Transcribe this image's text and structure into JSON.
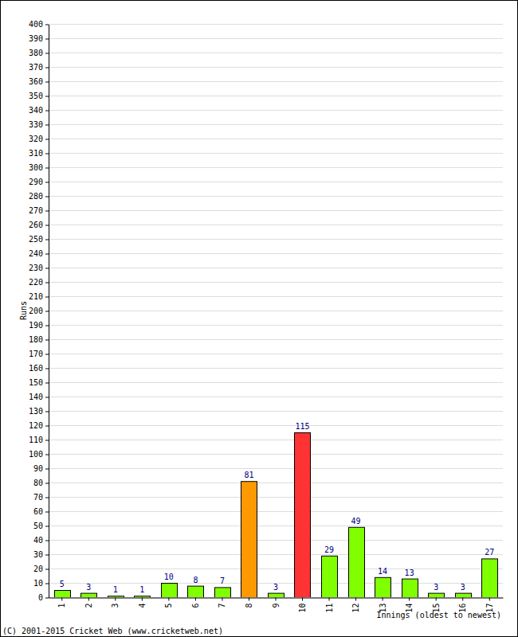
{
  "chart_data": {
    "type": "bar",
    "x_label": "Innings (oldest to newest)",
    "y_label": "Runs",
    "annotations": [
      "(C) 2001-2015 Cricket Web (www.cricketweb.net)"
    ],
    "categories": [
      "1",
      "2",
      "3",
      "4",
      "5",
      "6",
      "7",
      "8",
      "9",
      "10",
      "11",
      "12",
      "13",
      "14",
      "15",
      "16",
      "17"
    ],
    "values": [
      5,
      3,
      1,
      1,
      10,
      8,
      7,
      81,
      3,
      115,
      29,
      49,
      14,
      13,
      3,
      3,
      27
    ],
    "colors": [
      "#80ff00",
      "#80ff00",
      "#80ff00",
      "#80ff00",
      "#80ff00",
      "#80ff00",
      "#80ff00",
      "#ff9900",
      "#80ff00",
      "#ff3333",
      "#80ff00",
      "#80ff00",
      "#80ff00",
      "#80ff00",
      "#80ff00",
      "#80ff00",
      "#80ff00"
    ],
    "ylim": [
      0,
      400
    ],
    "yticks": [
      0,
      10,
      20,
      30,
      40,
      50,
      60,
      70,
      80,
      90,
      100,
      110,
      120,
      130,
      140,
      150,
      160,
      170,
      180,
      190,
      200,
      210,
      220,
      230,
      240,
      250,
      260,
      270,
      280,
      290,
      300,
      310,
      320,
      330,
      340,
      350,
      360,
      370,
      380,
      390,
      400
    ],
    "grid": true,
    "data_labels": true
  }
}
